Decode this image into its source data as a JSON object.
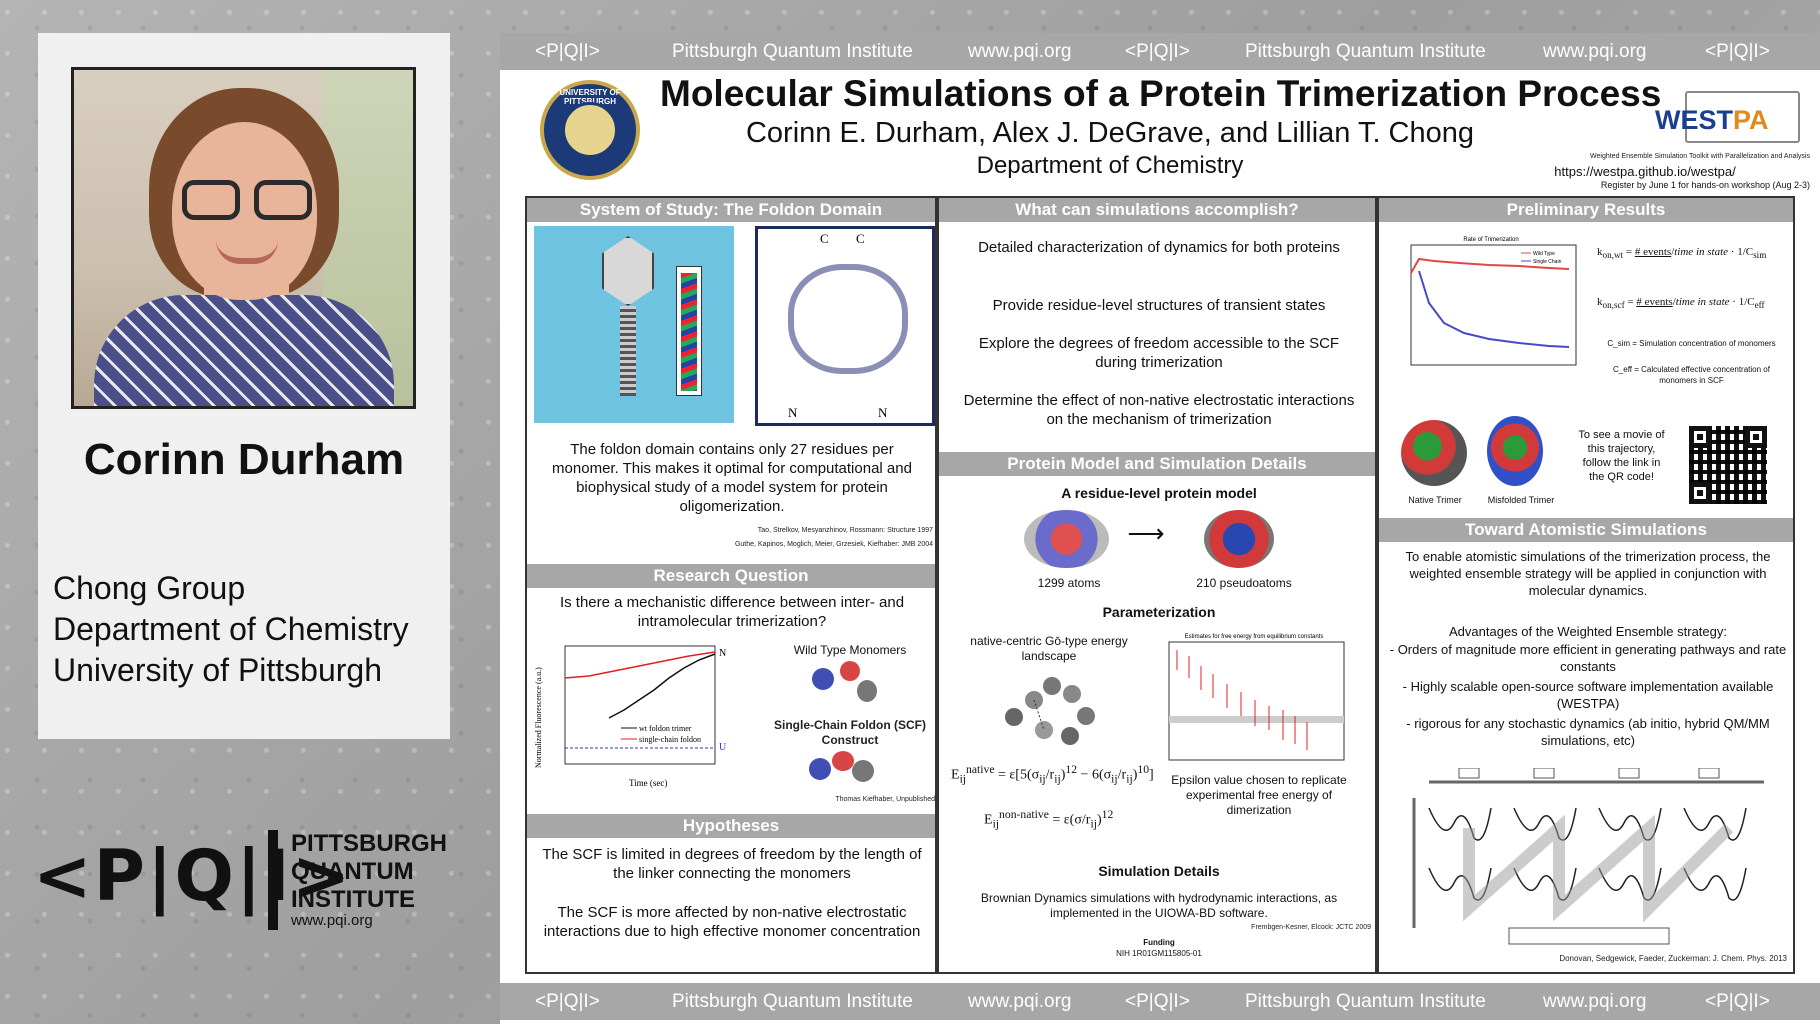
{
  "profile": {
    "name": "Corinn Durham",
    "affiliation": [
      "Chong Group",
      "Department of Chemistry",
      "University of Pittsburgh"
    ]
  },
  "institute_logo": {
    "mark": "<P|Q|I>",
    "lines": [
      "PITTSBURGH",
      "QUANTUM",
      "INSTITUTE"
    ],
    "url": "www.pqi.org"
  },
  "banner": {
    "mark": "<P|Q|I>",
    "name": "Pittsburgh Quantum Institute",
    "url": "www.pqi.org"
  },
  "poster": {
    "seal_text": "UNIVERSITY OF PITTSBURGH",
    "title": "Molecular Simulations of a Protein Trimerization Process",
    "authors": "Corinn E. Durham, Alex J. DeGrave, and Lillian T. Chong",
    "department": "Department of Chemistry",
    "westpa": {
      "logo_a": "WEST",
      "logo_b": "PA",
      "tagline": "Weighted Ensemble Simulation Toolkit with Parallelization and Analysis",
      "url": "https://westpa.github.io/westpa/",
      "register": "Register by June 1 for hands-on workshop (Aug 2-3)"
    },
    "col1": {
      "heading": "System of Study: The Foldon Domain",
      "foldon_labels": {
        "c": "C",
        "n": "N"
      },
      "foldon_text": "The foldon domain contains only 27 residues per monomer. This makes it optimal for computational and biophysical study of a model system for protein oligomerization.",
      "ref1": "Tao, Strelkov, Mesyanzhinov, Rossmann: Structure 1997",
      "ref2": "Guthe, Kapinos, Moglich, Meier, Grzesiek, Kiefhaber: JMB 2004",
      "rq_heading": "Research Question",
      "rq_text": "Is there a mechanistic difference between inter- and intramolecular trimerization?",
      "plot": {
        "ylabel": "Normalized Fluorescence (a.u.)",
        "xlabel": "Time (sec)",
        "legend": [
          "wt foldon trimer",
          "single-chain foldon"
        ],
        "label_n": "N",
        "label_u": "U"
      },
      "wt_label": "Wild Type Monomers",
      "scf_label": "Single-Chain Foldon (SCF) Construct",
      "unpub": "Thomas Kiefhaber, Unpublished",
      "hyp_heading": "Hypotheses",
      "hyp1": "The SCF is limited in degrees of freedom by the length of the linker connecting the monomers",
      "hyp2": "The SCF is more affected by non-native electrostatic interactions due to high effective monomer concentration"
    },
    "col2": {
      "heading": "What can simulations accomplish?",
      "items": [
        "Detailed characterization of dynamics for both proteins",
        "Provide residue-level structures of transient states",
        "Explore the degrees of freedom accessible to the SCF during trimerization",
        "Determine the effect of non-native electrostatic interactions on the mechanism of trimerization"
      ],
      "model_heading": "Protein Model and Simulation Details",
      "model_sub": "A residue-level protein model",
      "atoms": "1299 atoms",
      "pseudo": "210 pseudoatoms",
      "param_heading": "Parameterization",
      "go_label": "native-centric Gō-type energy landscape",
      "eps_caption": "Epsilon value chosen to replicate experimental free energy of dimerization",
      "eps_plot_title": "Estimates for free energy from equilibrium constants",
      "sim_heading": "Simulation Details",
      "sim_text": "Brownian Dynamics simulations with hydrodynamic interactions, as implemented in the UIOWA-BD software.",
      "sim_ref": "Frembgen-Kesner, Elcock: JCTC 2009",
      "funding_label": "Funding",
      "funding": "NIH 1R01GM115805-01"
    },
    "col3": {
      "heading": "Preliminary Results",
      "plot_title": "Rate of Trimerization",
      "plot_legend": [
        "Wild Type",
        "Single Chain"
      ],
      "csim_note": "C_sim = Simulation concentration of monomers",
      "ceff_note": "C_eff = Calculated effective concentration of monomers in SCF",
      "native": "Native Trimer",
      "misfolded": "Misfolded Trimer",
      "movie": "To see a movie of this trajectory, follow the link in the QR code!",
      "atomistic_heading": "Toward Atomistic Simulations",
      "atomistic_text": "To enable atomistic simulations of the trimerization process, the weighted ensemble strategy will be applied in conjunction with molecular dynamics.",
      "adv_heading": "Advantages of the Weighted Ensemble strategy:",
      "adv": [
        "- Orders of magnitude more efficient in generating pathways and rate constants",
        "- Highly scalable open-source software implementation available (WESTPA)",
        "- rigorous for any stochastic dynamics (ab initio, hybrid QM/MM simulations, etc)"
      ],
      "we_ref": "Donovan, Sedgewick, Faeder, Zuckerman: J. Chem. Phys. 2013"
    }
  }
}
